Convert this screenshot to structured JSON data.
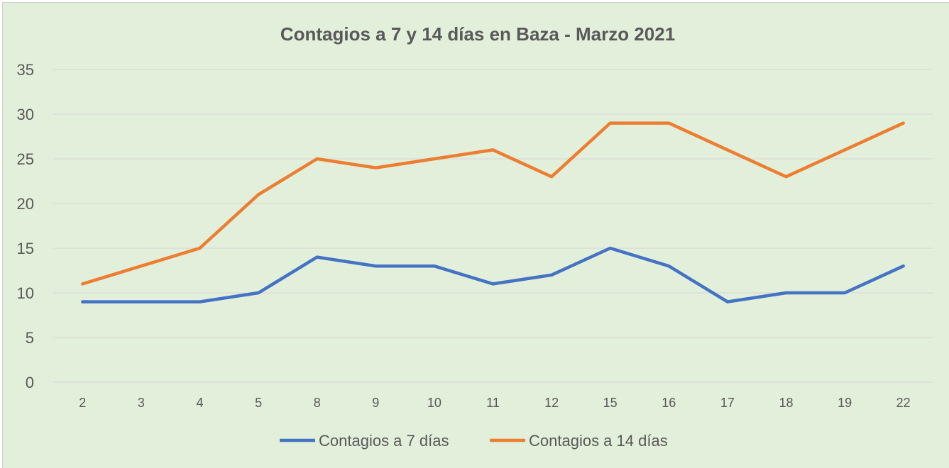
{
  "chart_data": {
    "type": "line",
    "title": "Contagios a 7 y 14 días en Baza - Marzo 2021",
    "xlabel": "",
    "ylabel": "",
    "categories": [
      "2",
      "3",
      "4",
      "5",
      "8",
      "9",
      "10",
      "11",
      "12",
      "15",
      "16",
      "17",
      "18",
      "19",
      "22"
    ],
    "ylim": [
      0,
      35
    ],
    "yticks": [
      0,
      5,
      10,
      15,
      20,
      25,
      30,
      35
    ],
    "grid": true,
    "legend": "bottom",
    "series": [
      {
        "name": "Contagios a 7 días",
        "color": "#4472c4",
        "values": [
          9,
          9,
          9,
          10,
          14,
          13,
          13,
          11,
          12,
          15,
          13,
          9,
          10,
          10,
          13
        ]
      },
      {
        "name": "Contagios a 14 días",
        "color": "#ed7d31",
        "values": [
          11,
          13,
          15,
          21,
          25,
          24,
          25,
          26,
          23,
          29,
          29,
          26,
          23,
          26,
          29
        ]
      }
    ]
  },
  "colors": {
    "background": "#e2efda",
    "gridline": "#d9d9d9",
    "text": "#595959"
  }
}
